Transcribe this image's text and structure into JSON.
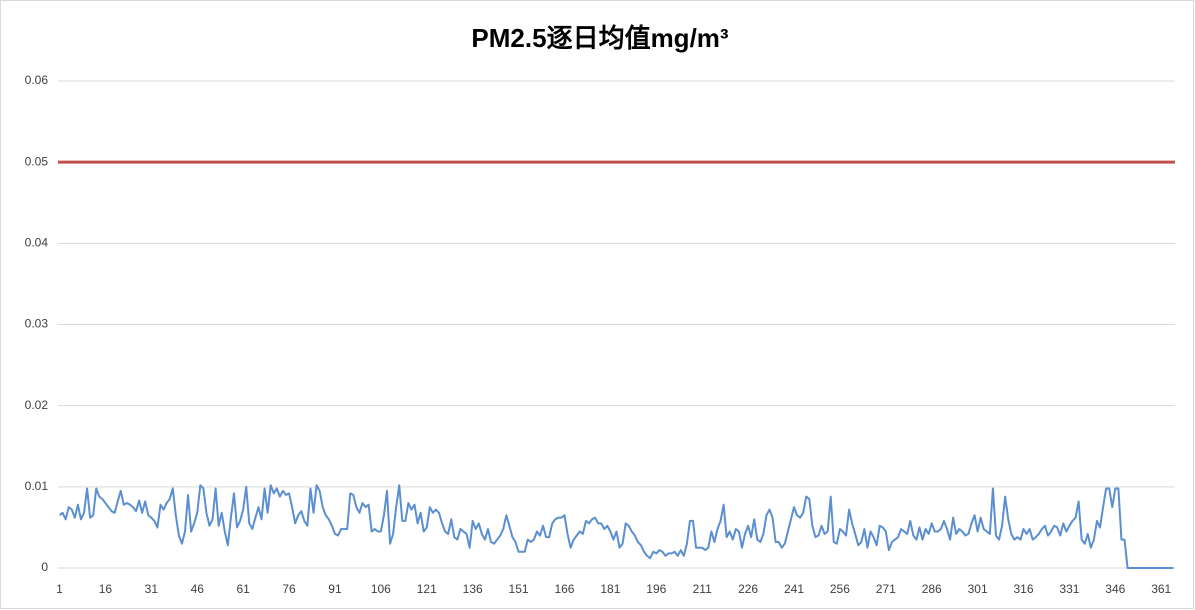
{
  "chart_data": {
    "type": "line",
    "title": "PM2.5逐日均值mg/m³",
    "categories": [
      1,
      null,
      null,
      null,
      null,
      null,
      null,
      null,
      null,
      null,
      null,
      null,
      null,
      null,
      null,
      16,
      null,
      null,
      null,
      null,
      null,
      null,
      null,
      null,
      null,
      null,
      null,
      null,
      null,
      null,
      31,
      null,
      null,
      null,
      null,
      null,
      null,
      null,
      null,
      null,
      null,
      null,
      null,
      null,
      null,
      46,
      null,
      null,
      null,
      null,
      null,
      null,
      null,
      null,
      null,
      null,
      null,
      null,
      null,
      null,
      61,
      null,
      null,
      null,
      null,
      null,
      null,
      null,
      null,
      null,
      null,
      null,
      null,
      null,
      null,
      76,
      null,
      null,
      null,
      null,
      null,
      null,
      null,
      null,
      null,
      null,
      null,
      null,
      null,
      null,
      91,
      null,
      null,
      null,
      null,
      null,
      null,
      null,
      null,
      null,
      null,
      null,
      null,
      null,
      null,
      106,
      null,
      null,
      null,
      null,
      null,
      null,
      null,
      null,
      null,
      null,
      null,
      null,
      null,
      null,
      121,
      null,
      null,
      null,
      null,
      null,
      null,
      null,
      null,
      null,
      null,
      null,
      null,
      null,
      null,
      136,
      null,
      null,
      null,
      null,
      null,
      null,
      null,
      null,
      null,
      null,
      null,
      null,
      null,
      null,
      151,
      null,
      null,
      null,
      null,
      null,
      null,
      null,
      null,
      null,
      null,
      null,
      null,
      null,
      null,
      166,
      null,
      null,
      null,
      null,
      null,
      null,
      null,
      null,
      null,
      null,
      null,
      null,
      null,
      null,
      181,
      null,
      null,
      null,
      null,
      null,
      null,
      null,
      null,
      null,
      null,
      null,
      null,
      null,
      null,
      196,
      null,
      null,
      null,
      null,
      null,
      null,
      null,
      null,
      null,
      null,
      null,
      null,
      null,
      null,
      211,
      null,
      null,
      null,
      null,
      null,
      null,
      null,
      null,
      null,
      null,
      null,
      null,
      null,
      null,
      226,
      null,
      null,
      null,
      null,
      null,
      null,
      null,
      null,
      null,
      null,
      null,
      null,
      null,
      null,
      241,
      null,
      null,
      null,
      null,
      null,
      null,
      null,
      null,
      null,
      null,
      null,
      null,
      null,
      null,
      256,
      null,
      null,
      null,
      null,
      null,
      null,
      null,
      null,
      null,
      null,
      null,
      null,
      null,
      null,
      271,
      null,
      null,
      null,
      null,
      null,
      null,
      null,
      null,
      null,
      null,
      null,
      null,
      null,
      null,
      286,
      null,
      null,
      null,
      null,
      null,
      null,
      null,
      null,
      null,
      null,
      null,
      null,
      null,
      null,
      301,
      null,
      null,
      null,
      null,
      null,
      null,
      null,
      null,
      null,
      null,
      null,
      null,
      null,
      null,
      316,
      null,
      null,
      null,
      null,
      null,
      null,
      null,
      null,
      null,
      null,
      null,
      null,
      null,
      null,
      331,
      null,
      null,
      null,
      null,
      null,
      null,
      null,
      null,
      null,
      null,
      null,
      null,
      null,
      null,
      346,
      null,
      null,
      null,
      null,
      null,
      null,
      null,
      null,
      null,
      null,
      null,
      null,
      null,
      null,
      361,
      null,
      null,
      null,
      null
    ],
    "series": [
      {
        "color": "#5b8fd0",
        "values": [
          0.0065,
          0.0068,
          0.006,
          0.0075,
          0.0072,
          0.0062,
          0.0078,
          0.006,
          0.0068,
          0.0098,
          0.0062,
          0.0065,
          0.0098,
          0.0088,
          0.0085,
          0.008,
          0.0075,
          0.007,
          0.0068,
          0.0082,
          0.0095,
          0.0078,
          0.008,
          0.0078,
          0.0075,
          0.007,
          0.0083,
          0.0068,
          0.0082,
          0.0065,
          0.0062,
          0.0058,
          0.005,
          0.0078,
          0.0072,
          0.008,
          0.0085,
          0.0098,
          0.0065,
          0.004,
          0.003,
          0.0045,
          0.009,
          0.0045,
          0.0055,
          0.0068,
          0.0102,
          0.0098,
          0.0068,
          0.0052,
          0.006,
          0.0098,
          0.0052,
          0.0068,
          0.0045,
          0.0028,
          0.0062,
          0.0092,
          0.005,
          0.0058,
          0.0072,
          0.01,
          0.0055,
          0.0048,
          0.0062,
          0.0075,
          0.006,
          0.0098,
          0.0068,
          0.0102,
          0.0092,
          0.0098,
          0.0088,
          0.0095,
          0.009,
          0.0092,
          0.0075,
          0.0055,
          0.0065,
          0.007,
          0.0058,
          0.0052,
          0.0098,
          0.0068,
          0.0102,
          0.0095,
          0.0075,
          0.0065,
          0.006,
          0.0052,
          0.0042,
          0.004,
          0.0048,
          0.0048,
          0.0048,
          0.0092,
          0.009,
          0.0075,
          0.0068,
          0.008,
          0.0075,
          0.0078,
          0.0045,
          0.0048,
          0.0045,
          0.0045,
          0.0065,
          0.0095,
          0.003,
          0.0042,
          0.0075,
          0.0102,
          0.0058,
          0.0058,
          0.008,
          0.0072,
          0.0078,
          0.0055,
          0.0068,
          0.0045,
          0.005,
          0.0075,
          0.0068,
          0.0072,
          0.0068,
          0.0055,
          0.0045,
          0.0042,
          0.006,
          0.0038,
          0.0035,
          0.0048,
          0.0045,
          0.0042,
          0.0025,
          0.0058,
          0.0048,
          0.0055,
          0.0042,
          0.0035,
          0.0048,
          0.0032,
          0.003,
          0.0035,
          0.004,
          0.0048,
          0.0065,
          0.0052,
          0.0038,
          0.0032,
          0.002,
          0.002,
          0.002,
          0.0035,
          0.0032,
          0.0035,
          0.0045,
          0.004,
          0.0052,
          0.0038,
          0.0038,
          0.0055,
          0.006,
          0.0062,
          0.0062,
          0.0065,
          0.0042,
          0.0025,
          0.0035,
          0.004,
          0.0045,
          0.0042,
          0.0058,
          0.0055,
          0.006,
          0.0062,
          0.0055,
          0.0055,
          0.0048,
          0.0052,
          0.0045,
          0.0035,
          0.0045,
          0.0025,
          0.003,
          0.0055,
          0.0052,
          0.0045,
          0.004,
          0.0032,
          0.0028,
          0.002,
          0.0015,
          0.0012,
          0.002,
          0.0018,
          0.0022,
          0.002,
          0.0015,
          0.0018,
          0.0018,
          0.002,
          0.0015,
          0.0022,
          0.0015,
          0.003,
          0.0058,
          0.0058,
          0.0025,
          0.0025,
          0.0025,
          0.0022,
          0.0025,
          0.0045,
          0.0032,
          0.0048,
          0.0058,
          0.0078,
          0.0038,
          0.0045,
          0.0035,
          0.0048,
          0.0045,
          0.0025,
          0.0042,
          0.0052,
          0.0038,
          0.006,
          0.0035,
          0.0032,
          0.0042,
          0.0065,
          0.0072,
          0.0062,
          0.0032,
          0.0032,
          0.0025,
          0.003,
          0.0045,
          0.006,
          0.0075,
          0.0065,
          0.0062,
          0.0068,
          0.0088,
          0.0085,
          0.0052,
          0.0038,
          0.004,
          0.0052,
          0.0042,
          0.0045,
          0.0088,
          0.0032,
          0.003,
          0.0048,
          0.0045,
          0.004,
          0.0072,
          0.0055,
          0.0042,
          0.0028,
          0.0032,
          0.0048,
          0.0025,
          0.0045,
          0.0038,
          0.0028,
          0.0052,
          0.005,
          0.0045,
          0.0022,
          0.0032,
          0.0035,
          0.0038,
          0.0048,
          0.0045,
          0.0042,
          0.0058,
          0.004,
          0.0035,
          0.005,
          0.0035,
          0.0048,
          0.0042,
          0.0055,
          0.0045,
          0.0045,
          0.0048,
          0.0058,
          0.0048,
          0.0035,
          0.0062,
          0.0042,
          0.0048,
          0.0045,
          0.004,
          0.0042,
          0.0055,
          0.0065,
          0.0045,
          0.0062,
          0.0048,
          0.0045,
          0.0042,
          0.0098,
          0.004,
          0.0035,
          0.0052,
          0.0088,
          0.006,
          0.0042,
          0.0035,
          0.0038,
          0.0035,
          0.0048,
          0.0042,
          0.0048,
          0.0035,
          0.0038,
          0.0042,
          0.0048,
          0.0052,
          0.004,
          0.0045,
          0.0052,
          0.005,
          0.004,
          0.0055,
          0.0045,
          0.0052,
          0.0058,
          0.0062,
          0.0082,
          0.0035,
          0.003,
          0.0042,
          0.0025,
          0.0035,
          0.0058,
          0.005,
          0.0075,
          0.0098,
          0.0098,
          0.0075,
          0.0098,
          0.0098,
          0.0035,
          0.0035,
          0,
          0,
          0,
          0,
          0,
          0,
          0,
          0,
          0,
          0,
          0,
          0,
          0,
          0,
          0,
          0
        ]
      }
    ],
    "reference_line": {
      "value": 0.05,
      "color": "#c0504d"
    },
    "ylim": [
      0,
      0.06
    ],
    "yticks": [
      0,
      0.01,
      0.02,
      0.03,
      0.04,
      0.05,
      0.06
    ],
    "grid": true
  }
}
